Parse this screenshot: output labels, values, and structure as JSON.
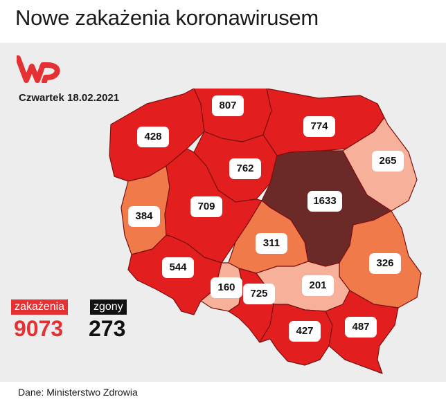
{
  "title": "Nowe zakażenia koronawirusem",
  "logo": {
    "icon": "wp-logo-icon",
    "color": "#e43133"
  },
  "date": "Czwartek 18.02.2021",
  "colors": {
    "dark_red": "#e21e1e",
    "orange": "#f07a4a",
    "salmon": "#f7b09a",
    "maroon": "#6b2a28",
    "accent": "#e43133"
  },
  "regions": [
    {
      "name": "zachodniopomorskie",
      "value": "428",
      "level": "dark_red"
    },
    {
      "name": "pomorskie",
      "value": "807",
      "level": "dark_red"
    },
    {
      "name": "warmińsko-mazurskie",
      "value": "774",
      "level": "dark_red"
    },
    {
      "name": "podlaskie",
      "value": "265",
      "level": "salmon"
    },
    {
      "name": "kujawsko-pomorskie",
      "value": "762",
      "level": "dark_red"
    },
    {
      "name": "mazowieckie",
      "value": "1633",
      "level": "maroon"
    },
    {
      "name": "lubuskie",
      "value": "384",
      "level": "orange"
    },
    {
      "name": "wielkopolskie",
      "value": "709",
      "level": "dark_red"
    },
    {
      "name": "łódzkie",
      "value": "311",
      "level": "orange"
    },
    {
      "name": "lubelskie",
      "value": "326",
      "level": "orange"
    },
    {
      "name": "dolnośląskie",
      "value": "544",
      "level": "dark_red"
    },
    {
      "name": "opolskie",
      "value": "160",
      "level": "salmon"
    },
    {
      "name": "śląskie",
      "value": "725",
      "level": "dark_red"
    },
    {
      "name": "świętokrzyskie",
      "value": "201",
      "level": "salmon"
    },
    {
      "name": "małopolskie",
      "value": "427",
      "level": "dark_red"
    },
    {
      "name": "podkarpackie",
      "value": "487",
      "level": "dark_red"
    }
  ],
  "stats": {
    "cases_label": "zakażenia",
    "cases_value": "9073",
    "deaths_label": "zgony",
    "deaths_value": "273"
  },
  "source": "Dane: Ministerstwo Zdrowia"
}
